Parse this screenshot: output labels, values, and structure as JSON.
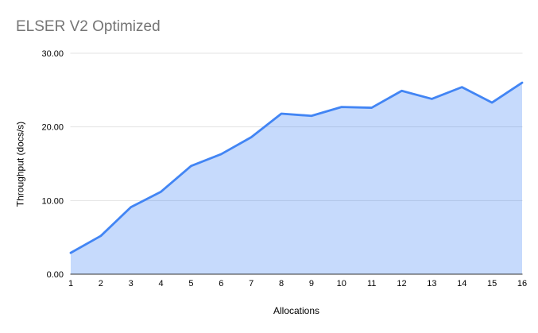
{
  "chart_data": {
    "type": "area",
    "title": "ELSER V2 Optimized",
    "xlabel": "Allocations",
    "ylabel": "Throughput (docs/s)",
    "categories": [
      "1",
      "2",
      "3",
      "4",
      "5",
      "6",
      "7",
      "8",
      "9",
      "10",
      "11",
      "12",
      "13",
      "14",
      "15",
      "16"
    ],
    "series": [
      {
        "name": "Throughput",
        "values": [
          2.9,
          5.2,
          9.1,
          11.2,
          14.7,
          16.3,
          18.6,
          21.8,
          21.5,
          22.7,
          22.6,
          24.9,
          23.8,
          25.4,
          23.3,
          26.0
        ]
      }
    ],
    "ylim": [
      0,
      30
    ],
    "yticks": [
      0,
      10,
      20,
      30
    ],
    "ytick_labels": [
      "0.00",
      "10.00",
      "20.00",
      "30.00"
    ],
    "grid": true,
    "legend": "none",
    "colors": {
      "line": "#4285f4",
      "fill": "rgba(66,133,244,0.30)",
      "gridline": "#e3e3e3",
      "axis_line": "#333333",
      "title_text": "#757575",
      "tick_text": "#000000"
    }
  }
}
